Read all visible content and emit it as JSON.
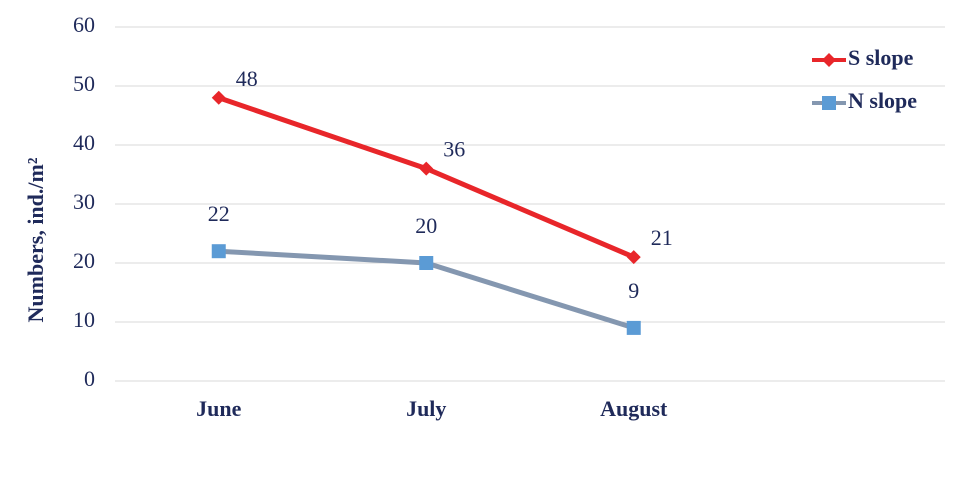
{
  "chart_data": {
    "type": "line",
    "y_label": "Numbers, ind./m²",
    "categories": [
      "June",
      "July",
      "August",
      null
    ],
    "series": [
      {
        "name": "S slope",
        "color": "#e8262a",
        "marker": "diamond",
        "values": [
          48,
          36,
          21,
          null
        ]
      },
      {
        "name": "N slope",
        "color": "#8497b0",
        "marker_color": "#5b9bd5",
        "marker": "square",
        "values": [
          22,
          20,
          9,
          null
        ]
      }
    ],
    "ylim": [
      0,
      60
    ],
    "yticks": [
      0,
      10,
      20,
      30,
      40,
      50,
      60
    ],
    "grid": true,
    "legend": "top-right"
  }
}
